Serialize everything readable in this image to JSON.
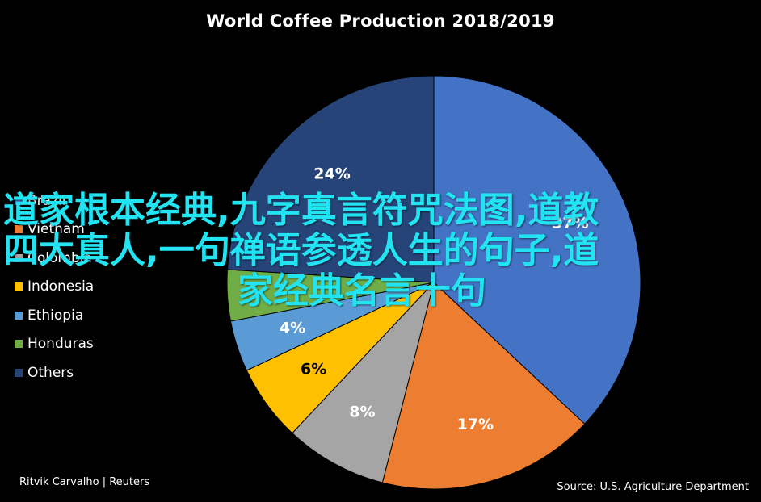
{
  "chart_data": {
    "type": "pie",
    "title": "World Coffee Production 2018/2019",
    "categories": [
      "Brazil",
      "Vietnam",
      "Colombia",
      "Indonesia",
      "Ethiopia",
      "Honduras",
      "Others"
    ],
    "values": [
      37,
      17,
      8,
      6,
      4,
      4,
      24
    ],
    "value_labels": [
      "37%",
      "17%",
      "8%",
      "6%",
      "4%",
      "",
      "24%"
    ],
    "legend_labels": [
      "Brazil",
      "Vietnam",
      "Colombia",
      "Indonesia",
      "Ethiopia",
      "Honduras",
      "Others"
    ],
    "colors": [
      "#4472C4",
      "#ED7D31",
      "#A5A5A5",
      "#FFC000",
      "#5B9BD5",
      "#70AD47",
      "#264478"
    ],
    "label_colors": [
      "#FFFFFF",
      "#FFFFFF",
      "#FFFFFF",
      "#000000",
      "#FFFFFF",
      "#FFFFFF",
      "#FFFFFF"
    ],
    "legend_position": "left",
    "start_angle_deg": 0,
    "direction": "clockwise"
  },
  "credit": "Ritvik Carvalho | Reuters",
  "source": "Source: U.S. Agriculture Department",
  "background_color": "#000000",
  "watermark": {
    "line1": "道家根本经典,九字真言符咒法图,道教",
    "line2": "四大真人,一句禅语参透人生的句子,道",
    "line3": "家经典名言十句",
    "color": "#22E3F2"
  }
}
